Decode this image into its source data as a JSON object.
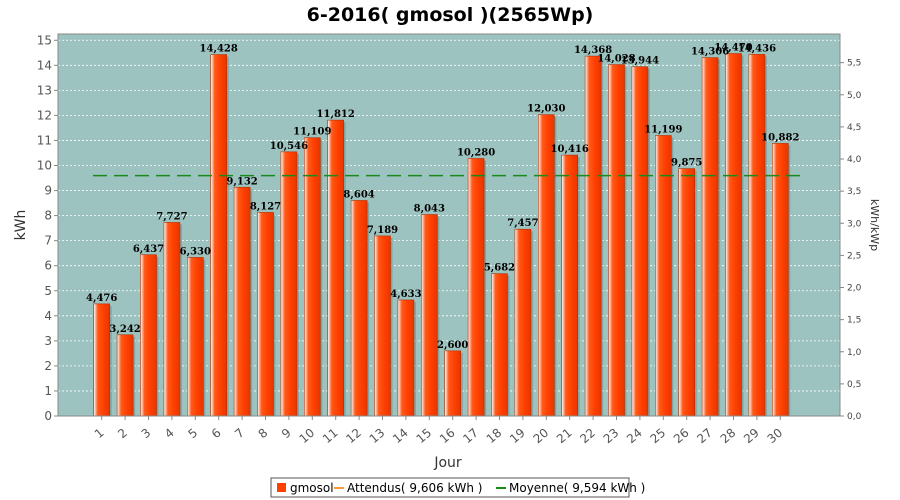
{
  "chart_data": {
    "type": "bar",
    "title": "6-2016( gmosol )(2565Wp)",
    "xlabel": "Jour",
    "ylabel": "kWh",
    "ylabel_right": "kWh/kWp",
    "ylim": [
      0,
      15.25
    ],
    "ylim_right": [
      0,
      5.946
    ],
    "yticks": [
      0,
      1,
      2,
      3,
      4,
      5,
      6,
      7,
      8,
      9,
      10,
      11,
      12,
      13,
      14,
      15
    ],
    "yticks_right": [
      "0,0",
      "0,5",
      "1,0",
      "1,5",
      "2,0",
      "2,5",
      "3,0",
      "3,5",
      "4,0",
      "4,5",
      "5,0",
      "5,5"
    ],
    "categories": [
      "1",
      "2",
      "3",
      "4",
      "5",
      "6",
      "7",
      "8",
      "9",
      "10",
      "11",
      "12",
      "13",
      "14",
      "15",
      "16",
      "17",
      "18",
      "19",
      "20",
      "21",
      "22",
      "23",
      "24",
      "25",
      "26",
      "27",
      "28",
      "29",
      "30"
    ],
    "series": [
      {
        "name": "gmosol",
        "values": [
          4.476,
          3.242,
          6.437,
          7.727,
          6.33,
          14.428,
          9.132,
          8.127,
          10.546,
          11.109,
          11.812,
          8.604,
          7.189,
          4.633,
          8.043,
          2.6,
          10.28,
          5.682,
          7.457,
          12.03,
          10.416,
          14.368,
          14.028,
          13.944,
          11.199,
          9.875,
          14.306,
          14.47,
          14.436,
          10.882
        ],
        "labels": [
          "4,476",
          "3,242",
          "6,437",
          "7,727",
          "6,330",
          "14,428",
          "9,132",
          "8,127",
          "10,546",
          "11,109",
          "11,812",
          "8,604",
          "7,189",
          "4,633",
          "8,043",
          "2,600",
          "10,280",
          "5,682",
          "7,457",
          "12,030",
          "10,416",
          "14,368",
          "14,028",
          "13,944",
          "11,199",
          "9,875",
          "14,306",
          "14,470",
          "14,436",
          "10,882"
        ],
        "color": "#ff4000"
      }
    ],
    "reference_lines": [
      {
        "name": "Moyenne",
        "value": 9.594,
        "color": "#1a8a1a",
        "style": "dashed"
      }
    ],
    "legend": {
      "position": "bottom",
      "items": [
        {
          "label": "gmosol",
          "color": "#ff4000",
          "marker": "box"
        },
        {
          "label": "Attendus( 9,606 kWh )",
          "color": "#ff9933",
          "marker": "line"
        },
        {
          "label": "Moyenne( 9,594 kWh )",
          "color": "#1a8a1a",
          "marker": "line"
        }
      ]
    },
    "plot_background": "#9dc3c0",
    "grid": true
  }
}
